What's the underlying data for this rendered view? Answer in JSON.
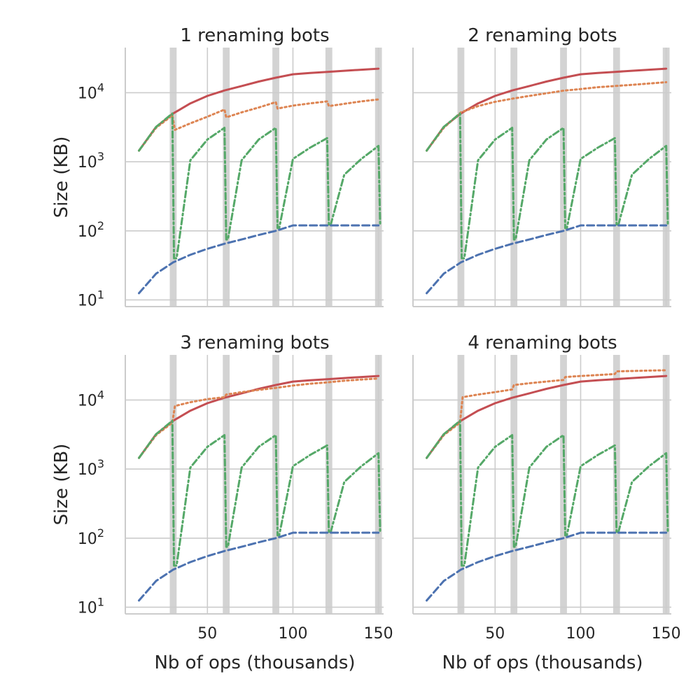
{
  "figure": {
    "xlabel": "Nb of ops (thousands)",
    "ylabel": "Size (KB)"
  },
  "chart_data": {
    "type": "line",
    "y_scale": "log",
    "x_ticks": [
      50,
      100,
      150
    ],
    "y_ticks": [
      {
        "value": 10,
        "base": "10",
        "exp": "1"
      },
      {
        "value": 100,
        "base": "10",
        "exp": "2"
      },
      {
        "value": 1000,
        "base": "10",
        "exp": "3"
      },
      {
        "value": 10000,
        "base": "10",
        "exp": "4"
      }
    ],
    "xlim": [
      2,
      153
    ],
    "ylim": [
      8,
      45000
    ],
    "grid": true,
    "shaded_bands": [
      [
        28,
        32
      ],
      [
        59,
        63
      ],
      [
        88,
        92
      ],
      [
        119,
        123
      ],
      [
        148,
        152
      ]
    ],
    "colors": {
      "red": "#c44e52",
      "orange": "#dd8452",
      "green": "#55a868",
      "blue": "#4c72b0"
    },
    "panels": [
      {
        "title": "1 renaming bots",
        "series": [
          {
            "color": "#c44e52",
            "style": "solid",
            "x": [
              10,
              20,
              30,
              40,
              50,
              60,
              70,
              80,
              90,
              100,
              110,
              120,
              130,
              140,
              150
            ],
            "y": [
              1450,
              3200,
              5000,
              7000,
              9000,
              10800,
              12500,
              14500,
              16500,
              18500,
              19300,
              20000,
              20800,
              21500,
              22300
            ]
          },
          {
            "color": "#dd8452",
            "style": "dotted",
            "x": [
              10,
              20,
              29.5,
              31,
              40,
              50,
              60,
              61,
              70,
              80,
              90,
              91,
              100,
              110,
              120,
              121,
              130,
              140,
              150
            ],
            "y": [
              1450,
              3100,
              4700,
              2900,
              3600,
              4500,
              5700,
              4400,
              5200,
              6100,
              7300,
              5900,
              6500,
              7000,
              7500,
              6400,
              6900,
              7500,
              8000
            ]
          },
          {
            "color": "#55a868",
            "style": "dashdot",
            "x": [
              10,
              20,
              29.5,
              30.5,
              32,
              40,
              50,
              60,
              61,
              62,
              70,
              80,
              90,
              91,
              92,
              100,
              110,
              120,
              121,
              122,
              130,
              140,
              150,
              151
            ],
            "y": [
              1450,
              3200,
              5000,
              40,
              40,
              1050,
              2100,
              3100,
              75,
              75,
              1050,
              2100,
              3100,
              110,
              110,
              1100,
              1600,
              2200,
              120,
              120,
              650,
              1100,
              1700,
              120
            ]
          },
          {
            "color": "#4c72b0",
            "style": "dashed",
            "x": [
              10,
              20,
              30,
              40,
              50,
              60,
              70,
              80,
              90,
              100,
              110,
              120,
              130,
              140,
              150
            ],
            "y": [
              12.5,
              24,
              35,
              45,
              55,
              65,
              75,
              87,
              100,
              120,
              120,
              120,
              120,
              120,
              120
            ]
          }
        ]
      },
      {
        "title": "2 renaming bots",
        "series": [
          {
            "color": "#c44e52",
            "style": "solid",
            "x": [
              10,
              20,
              30,
              40,
              50,
              60,
              70,
              80,
              90,
              100,
              110,
              120,
              130,
              140,
              150
            ],
            "y": [
              1450,
              3200,
              5000,
              7000,
              9000,
              10800,
              12500,
              14500,
              16500,
              18500,
              19300,
              20000,
              20800,
              21500,
              22300
            ]
          },
          {
            "color": "#dd8452",
            "style": "dotted",
            "x": [
              10,
              20,
              30,
              40,
              50,
              60,
              70,
              80,
              90,
              100,
              110,
              120,
              130,
              140,
              150
            ],
            "y": [
              1450,
              3100,
              5200,
              6400,
              7400,
              8200,
              9000,
              9800,
              10700,
              11300,
              12000,
              12500,
              13000,
              13600,
              14200
            ]
          },
          {
            "color": "#55a868",
            "style": "dashdot",
            "x": [
              10,
              20,
              29.5,
              30.5,
              32,
              40,
              50,
              60,
              61,
              62,
              70,
              80,
              90,
              91,
              92,
              100,
              110,
              120,
              121,
              122,
              130,
              140,
              150,
              151
            ],
            "y": [
              1450,
              3200,
              5000,
              40,
              40,
              1050,
              2100,
              3100,
              75,
              75,
              1050,
              2100,
              3100,
              110,
              110,
              1100,
              1600,
              2200,
              120,
              120,
              650,
              1100,
              1700,
              120
            ]
          },
          {
            "color": "#4c72b0",
            "style": "dashed",
            "x": [
              10,
              20,
              30,
              40,
              50,
              60,
              70,
              80,
              90,
              100,
              110,
              120,
              130,
              140,
              150
            ],
            "y": [
              12.5,
              24,
              35,
              45,
              55,
              65,
              75,
              87,
              100,
              120,
              120,
              120,
              120,
              120,
              120
            ]
          }
        ]
      },
      {
        "title": "3 renaming bots",
        "series": [
          {
            "color": "#c44e52",
            "style": "solid",
            "x": [
              10,
              20,
              30,
              40,
              50,
              60,
              70,
              80,
              90,
              100,
              110,
              120,
              130,
              140,
              150
            ],
            "y": [
              1450,
              3200,
              5000,
              7000,
              9000,
              10800,
              12500,
              14500,
              16500,
              18500,
              19300,
              20000,
              20800,
              21500,
              22300
            ]
          },
          {
            "color": "#dd8452",
            "style": "dotted",
            "x": [
              10,
              20,
              29.5,
              31,
              40,
              50,
              60,
              61,
              70,
              80,
              90,
              100,
              110,
              120,
              130,
              140,
              150
            ],
            "y": [
              1450,
              3100,
              4700,
              8200,
              9300,
              10300,
              11000,
              12000,
              13000,
              14000,
              15000,
              16200,
              17200,
              18000,
              19000,
              19800,
              20500
            ]
          },
          {
            "color": "#55a868",
            "style": "dashdot",
            "x": [
              10,
              20,
              29.5,
              30.5,
              32,
              40,
              50,
              60,
              61,
              62,
              70,
              80,
              90,
              91,
              92,
              100,
              110,
              120,
              121,
              122,
              130,
              140,
              150,
              151
            ],
            "y": [
              1450,
              3200,
              5000,
              40,
              40,
              1050,
              2100,
              3100,
              75,
              75,
              1050,
              2100,
              3100,
              110,
              110,
              1100,
              1600,
              2200,
              120,
              120,
              650,
              1100,
              1700,
              120
            ]
          },
          {
            "color": "#4c72b0",
            "style": "dashed",
            "x": [
              10,
              20,
              30,
              40,
              50,
              60,
              70,
              80,
              90,
              100,
              110,
              120,
              130,
              140,
              150
            ],
            "y": [
              12.5,
              24,
              35,
              45,
              55,
              65,
              75,
              87,
              100,
              120,
              120,
              120,
              120,
              120,
              120
            ]
          }
        ]
      },
      {
        "title": "4 renaming bots",
        "series": [
          {
            "color": "#c44e52",
            "style": "solid",
            "x": [
              10,
              20,
              30,
              40,
              50,
              60,
              70,
              80,
              90,
              100,
              110,
              120,
              130,
              140,
              150
            ],
            "y": [
              1450,
              3200,
              5000,
              7000,
              9000,
              10800,
              12500,
              14500,
              16500,
              18500,
              19300,
              20000,
              20800,
              21500,
              22300
            ]
          },
          {
            "color": "#dd8452",
            "style": "dotted",
            "x": [
              10,
              20,
              29.5,
              31,
              40,
              50,
              60,
              61,
              70,
              80,
              90,
              91,
              100,
              110,
              120,
              121,
              130,
              140,
              150
            ],
            "y": [
              1450,
              3100,
              4700,
              11000,
              12000,
              13000,
              14200,
              16500,
              17500,
              18500,
              19500,
              21500,
              22300,
              23000,
              23800,
              26000,
              26300,
              26700,
              27000
            ]
          },
          {
            "color": "#55a868",
            "style": "dashdot",
            "x": [
              10,
              20,
              29.5,
              30.5,
              32,
              40,
              50,
              60,
              61,
              62,
              70,
              80,
              90,
              91,
              92,
              100,
              110,
              120,
              121,
              122,
              130,
              140,
              150,
              151
            ],
            "y": [
              1450,
              3200,
              5000,
              40,
              40,
              1050,
              2100,
              3100,
              75,
              75,
              1050,
              2100,
              3100,
              110,
              110,
              1100,
              1600,
              2200,
              120,
              120,
              650,
              1100,
              1700,
              120
            ]
          },
          {
            "color": "#4c72b0",
            "style": "dashed",
            "x": [
              10,
              20,
              30,
              40,
              50,
              60,
              70,
              80,
              90,
              100,
              110,
              120,
              130,
              140,
              150
            ],
            "y": [
              12.5,
              24,
              35,
              45,
              55,
              65,
              75,
              87,
              100,
              120,
              120,
              120,
              120,
              120,
              120
            ]
          }
        ]
      }
    ]
  }
}
